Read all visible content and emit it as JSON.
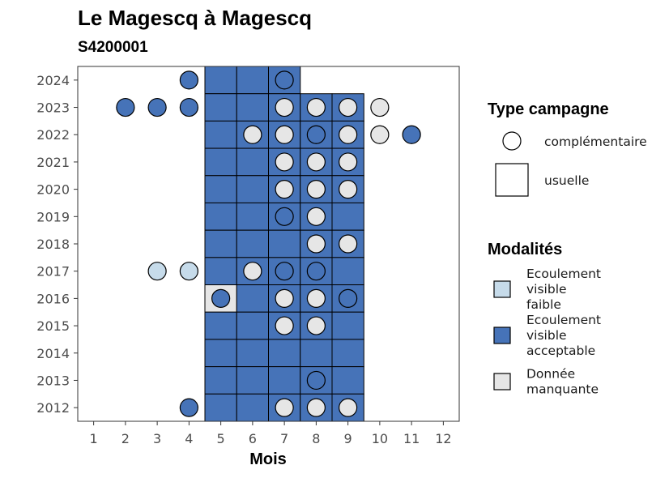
{
  "chart_data": {
    "type": "heatmap",
    "title": "Le Magescq à Magescq",
    "subtitle": "S4200001",
    "xlabel": "Mois",
    "ylabel": "",
    "x_ticks": [
      "1",
      "2",
      "3",
      "4",
      "5",
      "6",
      "7",
      "8",
      "9",
      "10",
      "11",
      "12"
    ],
    "y_ticks": [
      "2012",
      "2013",
      "2014",
      "2015",
      "2016",
      "2017",
      "2018",
      "2019",
      "2020",
      "2021",
      "2022",
      "2023",
      "2024"
    ],
    "xlim": [
      0.5,
      12.5
    ],
    "ylim": [
      2011.5,
      2024.5
    ],
    "grid": false,
    "legend_position": "right",
    "colors": {
      "Ecoulement visible faible": "#c6dbea",
      "Ecoulement visible acceptable": "#4673b8",
      "Donnée manquante": "#e6e6e6"
    },
    "legend_type": {
      "title": "Type campagne",
      "entries": [
        {
          "key": "complementaire",
          "label": "complémentaire",
          "shape": "circle"
        },
        {
          "key": "usuelle",
          "label": "usuelle",
          "shape": "square"
        }
      ]
    },
    "legend_modalites": {
      "title": "Modalités",
      "entries": [
        {
          "key": "Ecoulement visible faible",
          "lines": [
            "Ecoulement",
            "visible",
            "faible"
          ]
        },
        {
          "key": "Ecoulement visible acceptable",
          "lines": [
            "Ecoulement",
            "visible",
            "acceptable"
          ]
        },
        {
          "key": "Donnée manquante",
          "lines": [
            "Donnée",
            "manquante"
          ]
        }
      ]
    },
    "usuelle": [
      {
        "year": 2024,
        "month": 5,
        "modalite": "Ecoulement visible acceptable"
      },
      {
        "year": 2024,
        "month": 6,
        "modalite": "Ecoulement visible acceptable"
      },
      {
        "year": 2024,
        "month": 7,
        "modalite": "Ecoulement visible acceptable"
      },
      {
        "year": 2023,
        "month": 5,
        "modalite": "Ecoulement visible acceptable"
      },
      {
        "year": 2023,
        "month": 6,
        "modalite": "Ecoulement visible acceptable"
      },
      {
        "year": 2023,
        "month": 7,
        "modalite": "Ecoulement visible acceptable"
      },
      {
        "year": 2023,
        "month": 8,
        "modalite": "Ecoulement visible acceptable"
      },
      {
        "year": 2023,
        "month": 9,
        "modalite": "Ecoulement visible acceptable"
      },
      {
        "year": 2022,
        "month": 5,
        "modalite": "Ecoulement visible acceptable"
      },
      {
        "year": 2022,
        "month": 6,
        "modalite": "Ecoulement visible acceptable"
      },
      {
        "year": 2022,
        "month": 7,
        "modalite": "Ecoulement visible acceptable"
      },
      {
        "year": 2022,
        "month": 8,
        "modalite": "Ecoulement visible acceptable"
      },
      {
        "year": 2022,
        "month": 9,
        "modalite": "Ecoulement visible acceptable"
      },
      {
        "year": 2021,
        "month": 5,
        "modalite": "Ecoulement visible acceptable"
      },
      {
        "year": 2021,
        "month": 6,
        "modalite": "Ecoulement visible acceptable"
      },
      {
        "year": 2021,
        "month": 7,
        "modalite": "Ecoulement visible acceptable"
      },
      {
        "year": 2021,
        "month": 8,
        "modalite": "Ecoulement visible acceptable"
      },
      {
        "year": 2021,
        "month": 9,
        "modalite": "Ecoulement visible acceptable"
      },
      {
        "year": 2020,
        "month": 5,
        "modalite": "Ecoulement visible acceptable"
      },
      {
        "year": 2020,
        "month": 6,
        "modalite": "Ecoulement visible acceptable"
      },
      {
        "year": 2020,
        "month": 7,
        "modalite": "Ecoulement visible acceptable"
      },
      {
        "year": 2020,
        "month": 8,
        "modalite": "Ecoulement visible acceptable"
      },
      {
        "year": 2020,
        "month": 9,
        "modalite": "Ecoulement visible acceptable"
      },
      {
        "year": 2019,
        "month": 5,
        "modalite": "Ecoulement visible acceptable"
      },
      {
        "year": 2019,
        "month": 6,
        "modalite": "Ecoulement visible acceptable"
      },
      {
        "year": 2019,
        "month": 7,
        "modalite": "Ecoulement visible acceptable"
      },
      {
        "year": 2019,
        "month": 8,
        "modalite": "Ecoulement visible acceptable"
      },
      {
        "year": 2019,
        "month": 9,
        "modalite": "Ecoulement visible acceptable"
      },
      {
        "year": 2018,
        "month": 5,
        "modalite": "Ecoulement visible acceptable"
      },
      {
        "year": 2018,
        "month": 6,
        "modalite": "Ecoulement visible acceptable"
      },
      {
        "year": 2018,
        "month": 7,
        "modalite": "Ecoulement visible acceptable"
      },
      {
        "year": 2018,
        "month": 8,
        "modalite": "Ecoulement visible acceptable"
      },
      {
        "year": 2018,
        "month": 9,
        "modalite": "Ecoulement visible acceptable"
      },
      {
        "year": 2017,
        "month": 5,
        "modalite": "Ecoulement visible acceptable"
      },
      {
        "year": 2017,
        "month": 6,
        "modalite": "Ecoulement visible acceptable"
      },
      {
        "year": 2017,
        "month": 7,
        "modalite": "Ecoulement visible acceptable"
      },
      {
        "year": 2017,
        "month": 8,
        "modalite": "Ecoulement visible acceptable"
      },
      {
        "year": 2017,
        "month": 9,
        "modalite": "Ecoulement visible acceptable"
      },
      {
        "year": 2016,
        "month": 5,
        "modalite": "Donnée manquante"
      },
      {
        "year": 2016,
        "month": 6,
        "modalite": "Ecoulement visible acceptable"
      },
      {
        "year": 2016,
        "month": 7,
        "modalite": "Ecoulement visible acceptable"
      },
      {
        "year": 2016,
        "month": 8,
        "modalite": "Ecoulement visible acceptable"
      },
      {
        "year": 2016,
        "month": 9,
        "modalite": "Ecoulement visible acceptable"
      },
      {
        "year": 2015,
        "month": 5,
        "modalite": "Ecoulement visible acceptable"
      },
      {
        "year": 2015,
        "month": 6,
        "modalite": "Ecoulement visible acceptable"
      },
      {
        "year": 2015,
        "month": 7,
        "modalite": "Ecoulement visible acceptable"
      },
      {
        "year": 2015,
        "month": 8,
        "modalite": "Ecoulement visible acceptable"
      },
      {
        "year": 2015,
        "month": 9,
        "modalite": "Ecoulement visible acceptable"
      },
      {
        "year": 2014,
        "month": 5,
        "modalite": "Ecoulement visible acceptable"
      },
      {
        "year": 2014,
        "month": 6,
        "modalite": "Ecoulement visible acceptable"
      },
      {
        "year": 2014,
        "month": 7,
        "modalite": "Ecoulement visible acceptable"
      },
      {
        "year": 2014,
        "month": 8,
        "modalite": "Ecoulement visible acceptable"
      },
      {
        "year": 2014,
        "month": 9,
        "modalite": "Ecoulement visible acceptable"
      },
      {
        "year": 2013,
        "month": 5,
        "modalite": "Ecoulement visible acceptable"
      },
      {
        "year": 2013,
        "month": 6,
        "modalite": "Ecoulement visible acceptable"
      },
      {
        "year": 2013,
        "month": 7,
        "modalite": "Ecoulement visible acceptable"
      },
      {
        "year": 2013,
        "month": 8,
        "modalite": "Ecoulement visible acceptable"
      },
      {
        "year": 2013,
        "month": 9,
        "modalite": "Ecoulement visible acceptable"
      },
      {
        "year": 2012,
        "month": 5,
        "modalite": "Ecoulement visible acceptable"
      },
      {
        "year": 2012,
        "month": 6,
        "modalite": "Ecoulement visible acceptable"
      },
      {
        "year": 2012,
        "month": 7,
        "modalite": "Ecoulement visible acceptable"
      },
      {
        "year": 2012,
        "month": 8,
        "modalite": "Ecoulement visible acceptable"
      },
      {
        "year": 2012,
        "month": 9,
        "modalite": "Ecoulement visible acceptable"
      }
    ],
    "complementaire": [
      {
        "year": 2024,
        "month": 4,
        "modalite": "Ecoulement visible acceptable"
      },
      {
        "year": 2024,
        "month": 7,
        "modalite": "Ecoulement visible acceptable"
      },
      {
        "year": 2023,
        "month": 2,
        "modalite": "Ecoulement visible acceptable"
      },
      {
        "year": 2023,
        "month": 3,
        "modalite": "Ecoulement visible acceptable"
      },
      {
        "year": 2023,
        "month": 4,
        "modalite": "Ecoulement visible acceptable"
      },
      {
        "year": 2023,
        "month": 7,
        "modalite": "Donnée manquante"
      },
      {
        "year": 2023,
        "month": 8,
        "modalite": "Donnée manquante"
      },
      {
        "year": 2023,
        "month": 9,
        "modalite": "Donnée manquante"
      },
      {
        "year": 2023,
        "month": 10,
        "modalite": "Donnée manquante"
      },
      {
        "year": 2022,
        "month": 6,
        "modalite": "Donnée manquante"
      },
      {
        "year": 2022,
        "month": 7,
        "modalite": "Donnée manquante"
      },
      {
        "year": 2022,
        "month": 8,
        "modalite": "Ecoulement visible acceptable"
      },
      {
        "year": 2022,
        "month": 9,
        "modalite": "Donnée manquante"
      },
      {
        "year": 2022,
        "month": 10,
        "modalite": "Donnée manquante"
      },
      {
        "year": 2022,
        "month": 11,
        "modalite": "Ecoulement visible acceptable"
      },
      {
        "year": 2021,
        "month": 7,
        "modalite": "Donnée manquante"
      },
      {
        "year": 2021,
        "month": 8,
        "modalite": "Donnée manquante"
      },
      {
        "year": 2021,
        "month": 9,
        "modalite": "Donnée manquante"
      },
      {
        "year": 2020,
        "month": 7,
        "modalite": "Donnée manquante"
      },
      {
        "year": 2020,
        "month": 8,
        "modalite": "Donnée manquante"
      },
      {
        "year": 2020,
        "month": 9,
        "modalite": "Donnée manquante"
      },
      {
        "year": 2019,
        "month": 7,
        "modalite": "Ecoulement visible acceptable"
      },
      {
        "year": 2019,
        "month": 8,
        "modalite": "Donnée manquante"
      },
      {
        "year": 2018,
        "month": 8,
        "modalite": "Donnée manquante"
      },
      {
        "year": 2018,
        "month": 9,
        "modalite": "Donnée manquante"
      },
      {
        "year": 2017,
        "month": 3,
        "modalite": "Ecoulement visible faible"
      },
      {
        "year": 2017,
        "month": 4,
        "modalite": "Ecoulement visible faible"
      },
      {
        "year": 2017,
        "month": 6,
        "modalite": "Donnée manquante"
      },
      {
        "year": 2017,
        "month": 7,
        "modalite": "Ecoulement visible acceptable"
      },
      {
        "year": 2017,
        "month": 8,
        "modalite": "Ecoulement visible acceptable"
      },
      {
        "year": 2016,
        "month": 5,
        "modalite": "Ecoulement visible acceptable"
      },
      {
        "year": 2016,
        "month": 7,
        "modalite": "Donnée manquante"
      },
      {
        "year": 2016,
        "month": 8,
        "modalite": "Donnée manquante"
      },
      {
        "year": 2016,
        "month": 9,
        "modalite": "Ecoulement visible acceptable"
      },
      {
        "year": 2015,
        "month": 7,
        "modalite": "Donnée manquante"
      },
      {
        "year": 2015,
        "month": 8,
        "modalite": "Donnée manquante"
      },
      {
        "year": 2013,
        "month": 8,
        "modalite": "Ecoulement visible acceptable"
      },
      {
        "year": 2012,
        "month": 4,
        "modalite": "Ecoulement visible acceptable"
      },
      {
        "year": 2012,
        "month": 7,
        "modalite": "Donnée manquante"
      },
      {
        "year": 2012,
        "month": 8,
        "modalite": "Donnée manquante"
      },
      {
        "year": 2012,
        "month": 9,
        "modalite": "Donnée manquante"
      }
    ]
  }
}
